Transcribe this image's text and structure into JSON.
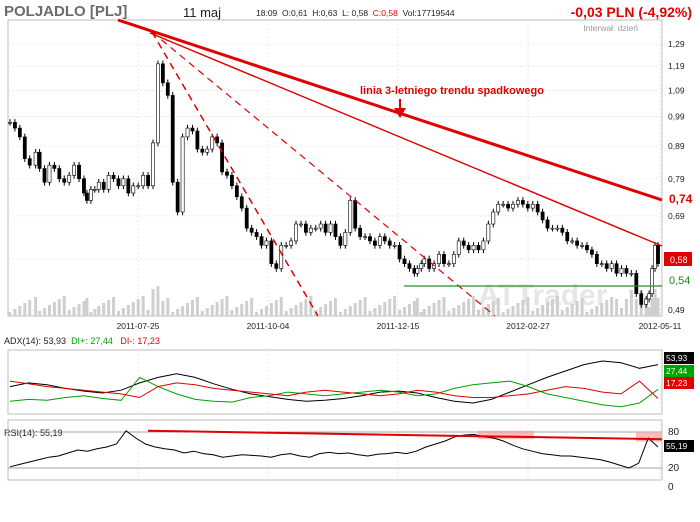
{
  "header": {
    "ticker": "POLJADLO [PLJ]",
    "date": "11 maj",
    "time": "18:09",
    "open": "O:0,61",
    "high": "H:0,63",
    "low": "L: 0,58",
    "close": "C:0,58",
    "volume": "Vol:17719544",
    "change": "-0,03 PLN (-4,92%)",
    "interval": "Interwał: dzień",
    "watermark": "ATTrader"
  },
  "colors": {
    "up": "#00a000",
    "down": "#e00000",
    "line": "#000000",
    "trend": "#e00000",
    "panel_bg": "#ffffff",
    "grid": "#dcdcdc"
  },
  "annotation": "linia 3-letniego trendu spadkowego",
  "price_badges": {
    "trend_end": "0,74",
    "last": "0,58",
    "support": "0,54"
  },
  "indicators": {
    "adx_label": "ADX(14): 53,93",
    "diplus_label": "DI+: 27,44",
    "diminus_label": "DI-: 17,23",
    "adx_value": "53,93",
    "diplus_value": "27,44",
    "diminus_value": "17,23",
    "rsi_label": "RSI(14): 55,19",
    "rsi_value": "55,19"
  },
  "chart_data": [
    {
      "type": "line",
      "y_scale": "log",
      "ylim": [
        0.49,
        1.29
      ],
      "y_ticks": [
        "1,29",
        "1,19",
        "1,09",
        "0,99",
        "0,89",
        "0,79",
        "0,69",
        "0,59",
        "0,49"
      ],
      "x_tick_labels": [
        "2011-07-25",
        "2011-10-04",
        "2011-12-15",
        "2012-02-27",
        "2012-05-11"
      ],
      "series": [
        {
          "x": [
            0,
            5,
            10,
            15,
            20,
            26,
            30,
            35,
            40,
            45,
            50,
            55,
            60,
            65,
            70,
            75,
            78,
            82,
            86,
            90,
            95,
            100,
            105,
            110,
            115,
            120,
            125,
            130,
            135,
            140,
            145,
            150,
            155,
            160,
            165,
            170,
            175,
            180,
            185,
            190,
            195,
            200,
            205,
            210,
            215,
            220,
            225,
            230,
            235,
            240,
            245,
            250,
            255,
            260,
            265,
            270,
            275,
            280,
            285,
            290,
            295,
            300,
            305,
            310,
            315,
            320,
            325,
            330,
            335,
            340,
            345,
            350,
            355,
            360,
            365,
            370,
            375,
            380,
            385,
            390,
            395,
            400,
            405,
            410,
            413,
            417,
            420,
            425,
            430,
            435,
            440,
            445,
            450,
            455,
            460,
            465,
            470,
            475,
            480,
            485,
            490,
            495,
            500,
            505,
            510,
            515,
            520,
            525,
            530,
            535,
            540,
            545,
            550,
            555,
            560,
            565,
            570,
            575,
            580,
            585,
            590,
            595,
            600,
            605,
            610,
            615,
            620,
            625,
            630,
            635,
            640,
            645,
            648,
            651,
            654,
            657
          ],
          "values": [
            0.97,
            0.95,
            0.92,
            0.85,
            0.83,
            0.87,
            0.82,
            0.78,
            0.83,
            0.82,
            0.79,
            0.78,
            0.8,
            0.83,
            0.79,
            0.75,
            0.73,
            0.76,
            0.76,
            0.78,
            0.76,
            0.8,
            0.79,
            0.77,
            0.79,
            0.75,
            0.77,
            0.77,
            0.8,
            0.77,
            0.9,
            1.2,
            1.12,
            1.07,
            0.78,
            0.7,
            0.92,
            0.95,
            0.94,
            0.88,
            0.87,
            0.88,
            0.92,
            0.9,
            0.81,
            0.8,
            0.77,
            0.74,
            0.71,
            0.66,
            0.65,
            0.64,
            0.62,
            0.63,
            0.58,
            0.57,
            0.62,
            0.62,
            0.63,
            0.67,
            0.67,
            0.65,
            0.66,
            0.66,
            0.67,
            0.65,
            0.67,
            0.64,
            0.62,
            0.65,
            0.73,
            0.66,
            0.64,
            0.64,
            0.63,
            0.62,
            0.64,
            0.63,
            0.62,
            0.62,
            0.59,
            0.58,
            0.57,
            0.56,
            0.57,
            0.58,
            0.59,
            0.57,
            0.58,
            0.6,
            0.58,
            0.58,
            0.6,
            0.63,
            0.62,
            0.61,
            0.62,
            0.61,
            0.63,
            0.67,
            0.7,
            0.72,
            0.72,
            0.71,
            0.72,
            0.73,
            0.72,
            0.71,
            0.72,
            0.7,
            0.68,
            0.66,
            0.66,
            0.66,
            0.65,
            0.63,
            0.63,
            0.62,
            0.62,
            0.61,
            0.6,
            0.58,
            0.58,
            0.57,
            0.58,
            0.56,
            0.57,
            0.56,
            0.56,
            0.52,
            0.5,
            0.51,
            0.52,
            0.57,
            0.62,
            0.58
          ]
        }
      ]
    },
    {
      "type": "line",
      "ylim": [
        0,
        70
      ],
      "series": [
        {
          "name": "ADX(14)",
          "values": [
            30,
            34,
            32,
            28,
            25,
            23,
            26,
            34,
            40,
            44,
            40,
            33,
            27,
            22,
            19,
            16,
            14,
            15,
            17,
            20,
            24,
            25,
            23,
            18,
            14,
            12,
            16,
            24,
            32,
            40,
            47,
            54,
            58,
            56,
            50,
            54
          ]
        },
        {
          "name": "DI+",
          "values": [
            14,
            16,
            15,
            18,
            20,
            17,
            15,
            40,
            30,
            22,
            16,
            14,
            13,
            18,
            20,
            24,
            22,
            20,
            22,
            24,
            26,
            24,
            20,
            22,
            28,
            32,
            34,
            36,
            30,
            22,
            18,
            14,
            10,
            8,
            12,
            27
          ]
        },
        {
          "name": "DI-",
          "values": [
            36,
            33,
            30,
            28,
            26,
            24,
            22,
            18,
            30,
            34,
            32,
            28,
            26,
            24,
            22,
            20,
            24,
            26,
            24,
            22,
            20,
            22,
            26,
            24,
            20,
            18,
            18,
            20,
            22,
            26,
            30,
            28,
            24,
            22,
            36,
            17
          ]
        }
      ]
    },
    {
      "type": "line",
      "ylim": [
        0,
        100
      ],
      "y_ticks": [
        "80",
        "20",
        "0"
      ],
      "series": [
        {
          "name": "RSI(14)",
          "values": [
            22,
            26,
            30,
            34,
            38,
            40,
            45,
            50,
            48,
            52,
            55,
            60,
            82,
            70,
            60,
            55,
            52,
            50,
            45,
            48,
            44,
            42,
            38,
            40,
            42,
            41,
            40,
            38,
            42,
            44,
            40,
            38,
            44,
            46,
            44,
            45,
            42,
            40,
            43,
            44,
            46,
            44,
            48,
            55,
            60,
            65,
            72,
            75,
            76,
            72,
            70,
            65,
            58,
            52,
            48,
            44,
            42,
            40,
            40,
            38,
            36,
            34,
            30,
            25,
            20,
            28,
            70,
            55
          ]
        }
      ]
    }
  ]
}
